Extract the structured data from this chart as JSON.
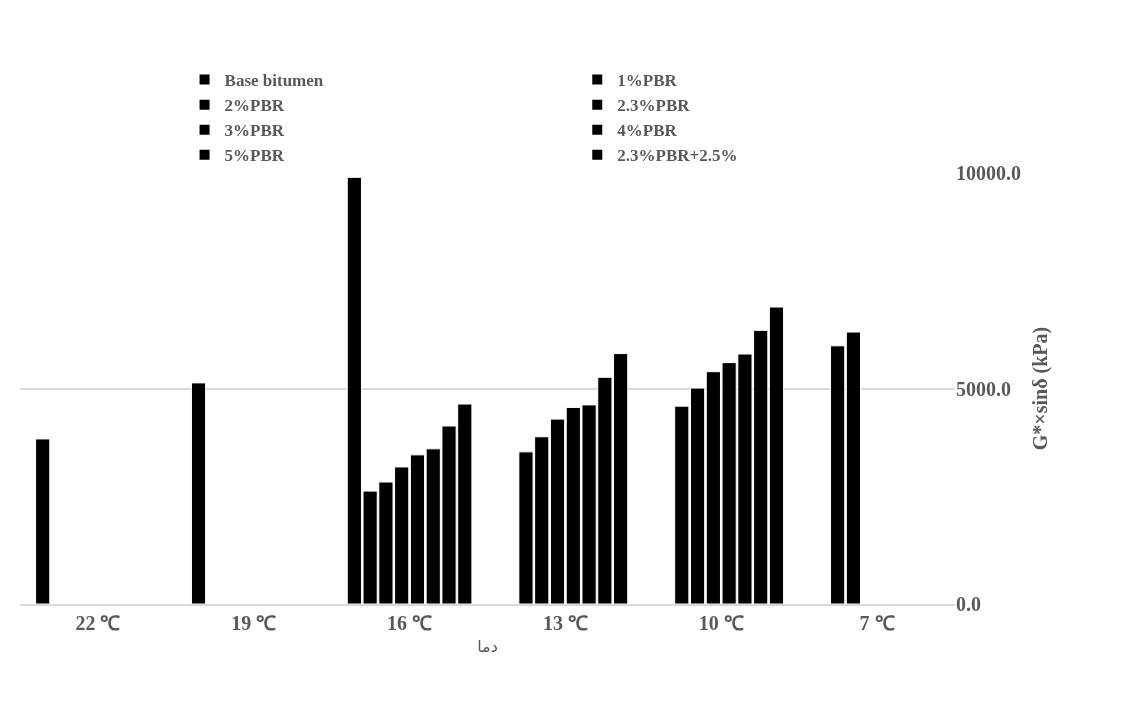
{
  "chart_data": {
    "type": "bar",
    "categories": [
      "22 ℃",
      "19 ℃",
      "16 ℃",
      "13 ℃",
      "10 ℃",
      "7 ℃"
    ],
    "xlabel": "دما",
    "ylabel": "G*×sinδ (kPa)",
    "series": [
      {
        "name": "Base bitumen",
        "color": "#000000",
        "values": [
          null,
          null,
          4640,
          5810,
          6890,
          null
        ]
      },
      {
        "name": "1%PBR",
        "color": "#000000",
        "values": [
          null,
          null,
          4130,
          5260,
          6350,
          null
        ]
      },
      {
        "name": "2%PBR",
        "color": "#000000",
        "values": [
          null,
          null,
          3600,
          4620,
          5800,
          null
        ]
      },
      {
        "name": "2.3%PBR",
        "color": "#000000",
        "values": [
          null,
          null,
          3460,
          4560,
          5600,
          null
        ]
      },
      {
        "name": "3%PBR",
        "color": "#000000",
        "values": [
          null,
          null,
          3180,
          4290,
          5390,
          null
        ]
      },
      {
        "name": "4%PBR",
        "color": "#000000",
        "values": [
          null,
          null,
          2830,
          3880,
          5010,
          6310
        ]
      },
      {
        "name": "5%PBR",
        "color": "#000000",
        "values": [
          null,
          null,
          2620,
          3530,
          4590,
          5990
        ]
      },
      {
        "name": "2.3%PBR+2.5%",
        "color": "#000000",
        "values": [
          3830,
          5130,
          9900,
          null,
          null,
          null
        ]
      }
    ],
    "ylim": [
      0,
      10000
    ],
    "yticks": [
      {
        "value": 0,
        "label": "0.0"
      },
      {
        "value": 5000,
        "label": "5000.0"
      },
      {
        "value": 10000,
        "label": "10000.0"
      }
    ],
    "grid": "y",
    "legend": "top"
  }
}
